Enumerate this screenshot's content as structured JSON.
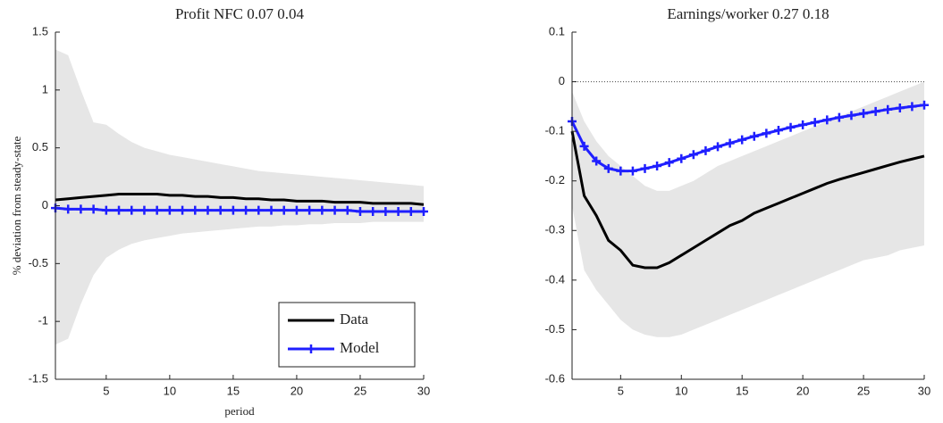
{
  "chart_data": [
    {
      "type": "line",
      "title": "Profit NFC 0.07 0.04",
      "y_label": "% deviation from steady-state",
      "x_label": "period",
      "x": [
        1,
        2,
        3,
        4,
        5,
        6,
        7,
        8,
        9,
        10,
        11,
        12,
        13,
        14,
        15,
        16,
        17,
        18,
        19,
        20,
        21,
        22,
        23,
        24,
        25,
        26,
        27,
        28,
        29,
        30
      ],
      "xlim": [
        1,
        30
      ],
      "xticks": [
        5,
        10,
        15,
        20,
        25,
        30
      ],
      "ylim": [
        -1.5,
        1.5
      ],
      "yticks": [
        -1.5,
        -1,
        -0.5,
        0,
        0.5,
        1,
        1.5
      ],
      "legend": "lower right",
      "band": {
        "color": "#e6e6e6",
        "upper": [
          1.35,
          1.3,
          1.0,
          0.72,
          0.7,
          0.62,
          0.55,
          0.5,
          0.47,
          0.44,
          0.42,
          0.4,
          0.38,
          0.36,
          0.34,
          0.32,
          0.3,
          0.29,
          0.28,
          0.27,
          0.26,
          0.25,
          0.24,
          0.23,
          0.22,
          0.21,
          0.2,
          0.19,
          0.18,
          0.17
        ],
        "lower": [
          -1.2,
          -1.15,
          -0.85,
          -0.6,
          -0.45,
          -0.38,
          -0.33,
          -0.3,
          -0.28,
          -0.26,
          -0.24,
          -0.23,
          -0.22,
          -0.21,
          -0.2,
          -0.19,
          -0.18,
          -0.18,
          -0.17,
          -0.17,
          -0.16,
          -0.16,
          -0.15,
          -0.15,
          -0.15,
          -0.14,
          -0.14,
          -0.14,
          -0.14,
          -0.14
        ]
      },
      "series": [
        {
          "name": "Data",
          "color": "#000000",
          "marker": false,
          "values": [
            0.05,
            0.06,
            0.07,
            0.08,
            0.09,
            0.1,
            0.1,
            0.1,
            0.1,
            0.09,
            0.09,
            0.08,
            0.08,
            0.07,
            0.07,
            0.06,
            0.06,
            0.05,
            0.05,
            0.04,
            0.04,
            0.04,
            0.03,
            0.03,
            0.03,
            0.02,
            0.02,
            0.02,
            0.02,
            0.01
          ]
        },
        {
          "name": "Model",
          "color": "#1f1fff",
          "marker": true,
          "values": [
            -0.02,
            -0.03,
            -0.03,
            -0.03,
            -0.04,
            -0.04,
            -0.04,
            -0.04,
            -0.04,
            -0.04,
            -0.04,
            -0.04,
            -0.04,
            -0.04,
            -0.04,
            -0.04,
            -0.04,
            -0.04,
            -0.04,
            -0.04,
            -0.04,
            -0.04,
            -0.04,
            -0.04,
            -0.05,
            -0.05,
            -0.05,
            -0.05,
            -0.05,
            -0.05
          ]
        }
      ]
    },
    {
      "type": "line",
      "title": "Earnings/worker 0.27 0.18",
      "zero_line": true,
      "x": [
        1,
        2,
        3,
        4,
        5,
        6,
        7,
        8,
        9,
        10,
        11,
        12,
        13,
        14,
        15,
        16,
        17,
        18,
        19,
        20,
        21,
        22,
        23,
        24,
        25,
        26,
        27,
        28,
        29,
        30
      ],
      "xlim": [
        1,
        30
      ],
      "xticks": [
        5,
        10,
        15,
        20,
        25,
        30
      ],
      "ylim": [
        -0.6,
        0.1
      ],
      "yticks": [
        -0.6,
        -0.5,
        -0.4,
        -0.3,
        -0.2,
        -0.1,
        0,
        0.1
      ],
      "band": {
        "color": "#e6e6e6",
        "upper": [
          -0.02,
          -0.08,
          -0.12,
          -0.15,
          -0.17,
          -0.19,
          -0.21,
          -0.22,
          -0.22,
          -0.21,
          -0.2,
          -0.185,
          -0.17,
          -0.16,
          -0.15,
          -0.14,
          -0.13,
          -0.12,
          -0.11,
          -0.1,
          -0.09,
          -0.08,
          -0.07,
          -0.06,
          -0.05,
          -0.04,
          -0.03,
          -0.02,
          -0.01,
          0
        ],
        "lower": [
          -0.25,
          -0.38,
          -0.42,
          -0.45,
          -0.48,
          -0.5,
          -0.51,
          -0.515,
          -0.515,
          -0.51,
          -0.5,
          -0.49,
          -0.48,
          -0.47,
          -0.46,
          -0.45,
          -0.44,
          -0.43,
          -0.42,
          -0.41,
          -0.4,
          -0.39,
          -0.38,
          -0.37,
          -0.36,
          -0.355,
          -0.35,
          -0.34,
          -0.335,
          -0.33
        ]
      },
      "series": [
        {
          "color": "#000000",
          "marker": false,
          "values": [
            -0.1,
            -0.23,
            -0.27,
            -0.32,
            -0.34,
            -0.37,
            -0.375,
            -0.375,
            -0.365,
            -0.35,
            -0.335,
            -0.32,
            -0.305,
            -0.29,
            -0.28,
            -0.265,
            -0.255,
            -0.245,
            -0.235,
            -0.225,
            -0.215,
            -0.205,
            -0.197,
            -0.19,
            -0.183,
            -0.176,
            -0.169,
            -0.162,
            -0.156,
            -0.15
          ]
        },
        {
          "color": "#1f1fff",
          "marker": true,
          "values": [
            -0.08,
            -0.13,
            -0.16,
            -0.175,
            -0.18,
            -0.18,
            -0.175,
            -0.17,
            -0.163,
            -0.155,
            -0.147,
            -0.139,
            -0.131,
            -0.124,
            -0.117,
            -0.11,
            -0.104,
            -0.098,
            -0.092,
            -0.087,
            -0.082,
            -0.077,
            -0.072,
            -0.068,
            -0.064,
            -0.06,
            -0.056,
            -0.053,
            -0.05,
            -0.047
          ]
        }
      ]
    }
  ]
}
